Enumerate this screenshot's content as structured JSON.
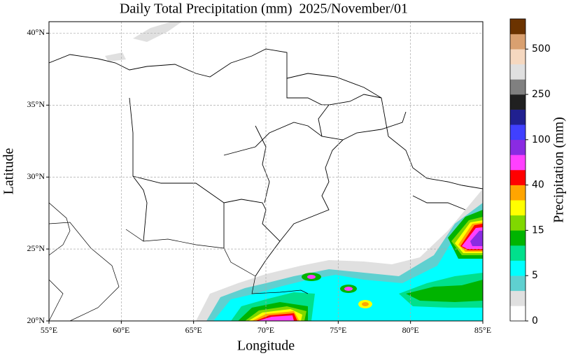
{
  "chart_data": {
    "type": "map",
    "title": "Daily Total Precipitation (mm)  2025/November/01",
    "x_label": "Longitude",
    "y_label": "Latitude",
    "xlim": [
      55,
      85
    ],
    "ylim": [
      20,
      40.8
    ],
    "xticks": [
      {
        "value": 55,
        "label": "55°E"
      },
      {
        "value": 60,
        "label": "60°E"
      },
      {
        "value": 65,
        "label": "65°E"
      },
      {
        "value": 70,
        "label": "70°E"
      },
      {
        "value": 75,
        "label": "75°E"
      },
      {
        "value": 80,
        "label": "80°E"
      },
      {
        "value": 85,
        "label": "85°E"
      }
    ],
    "yticks": [
      {
        "value": 20,
        "label": "20°N"
      },
      {
        "value": 25,
        "label": "25°N"
      },
      {
        "value": 30,
        "label": "30°N"
      },
      {
        "value": 35,
        "label": "35°N"
      },
      {
        "value": 40,
        "label": "40°N"
      }
    ],
    "grid": true,
    "colorbar": {
      "label": "Precipitation (mm)",
      "ticks": [
        0,
        5,
        15,
        40,
        100,
        250,
        500
      ],
      "colors": [
        "#ffffff",
        "#e0e0e0",
        "#5fd0d0",
        "#00ffff",
        "#00e08c",
        "#00b400",
        "#80d800",
        "#ffff00",
        "#ffa500",
        "#ff0000",
        "#ff40ff",
        "#8a2be2",
        "#4040ff",
        "#202090",
        "#202020",
        "#808080",
        "#e0e0e0",
        "#f5d8c0",
        "#d9a070",
        "#6b3300"
      ]
    }
  }
}
